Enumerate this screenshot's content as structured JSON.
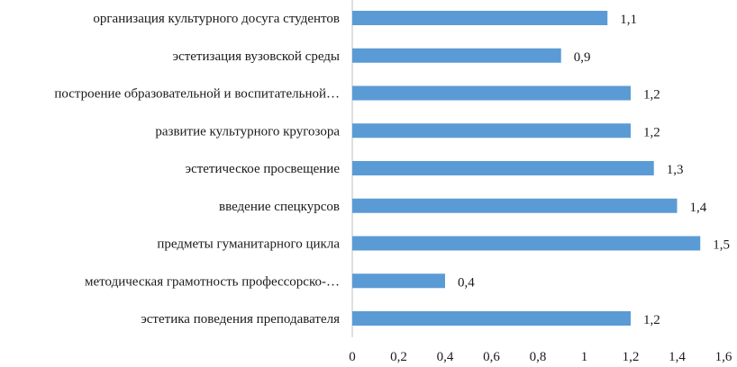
{
  "chart_data": {
    "type": "bar",
    "orientation": "horizontal",
    "categories": [
      "организация культурного досуга студентов",
      "эстетизация  вузовской среды",
      "построение образовательной и воспитательной…",
      "развитие культурного кругозора",
      "эстетическое  просвещение",
      "введение спецкурсов",
      "предметы гуманитарного цикла",
      "методическая  грамотность профессорско-…",
      "эстетика поведения преподавателя"
    ],
    "values": [
      1.1,
      0.9,
      1.2,
      1.2,
      1.3,
      1.4,
      1.5,
      0.4,
      1.2
    ],
    "value_labels": [
      "1,1",
      "0,9",
      "1,2",
      "1,2",
      "1,3",
      "1,4",
      "1,5",
      "0,4",
      "1,2"
    ],
    "xlim": [
      0,
      1.6
    ],
    "xticks": [
      0,
      0.2,
      0.4,
      0.6,
      0.8,
      1,
      1.2,
      1.4,
      1.6
    ],
    "xtick_labels": [
      "0",
      "0,2",
      "0,4",
      "0,6",
      "0,8",
      "1",
      "1,2",
      "1,4",
      "1,6"
    ],
    "grid": false,
    "bar_color": "#5b9bd5"
  }
}
